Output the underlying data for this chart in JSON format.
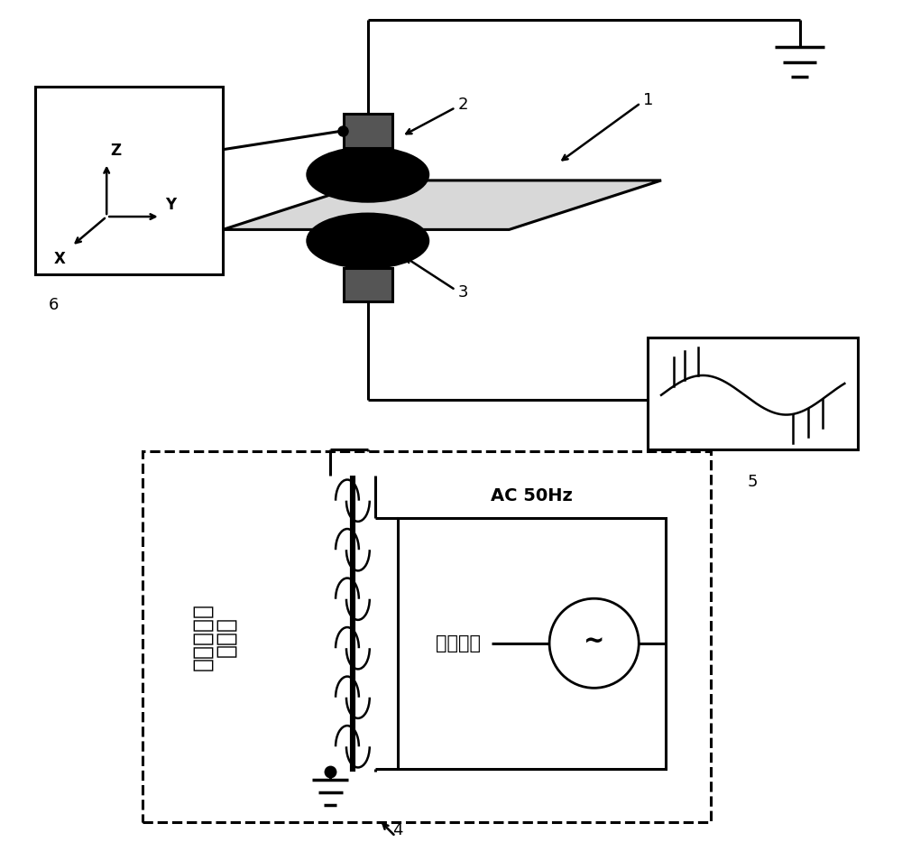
{
  "bg_color": "#ffffff",
  "line_color": "#000000",
  "ac_label": "AC 50Hz",
  "chinese_source": "可调电源",
  "chinese_generator": "高压发生器\n无局放",
  "plate_color": "#d8d8d8",
  "transducer_color": "#d0d0d0",
  "connector_color": "#555555"
}
